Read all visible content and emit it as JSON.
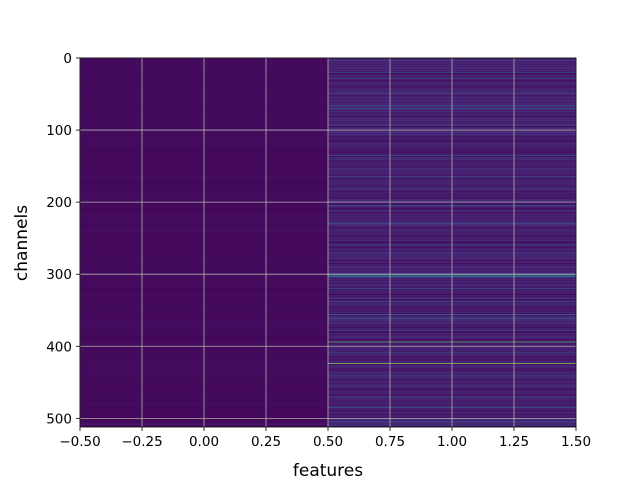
{
  "chart_data": {
    "type": "heatmap",
    "colormap": "viridis",
    "xlabel": "features",
    "ylabel": "channels",
    "xlim": [
      -0.5,
      1.5
    ],
    "ylim": [
      512,
      0
    ],
    "y_inverted": true,
    "grid": true,
    "x_ticks": [
      "−0.50",
      "−0.25",
      "0.00",
      "0.25",
      "0.50",
      "0.75",
      "1.00",
      "1.25",
      "1.50"
    ],
    "x_tick_values": [
      -0.5,
      -0.25,
      0.0,
      0.25,
      0.5,
      0.75,
      1.0,
      1.25,
      1.5
    ],
    "y_ticks": [
      "0",
      "100",
      "200",
      "300",
      "400",
      "500"
    ],
    "y_tick_values": [
      0,
      100,
      200,
      300,
      400,
      500
    ],
    "columns": [
      0,
      1
    ],
    "rows": 512,
    "value_range": [
      0,
      1
    ],
    "column_0": {
      "baseline": 0.02,
      "bright_rows": [
        {
          "row": 508,
          "value": 0.12
        }
      ]
    },
    "column_1": {
      "baseline": 0.12,
      "bright_rows": [
        {
          "row": 3,
          "value": 0.35
        },
        {
          "row": 20,
          "value": 0.3
        },
        {
          "row": 28,
          "value": 0.4
        },
        {
          "row": 50,
          "value": 0.3
        },
        {
          "row": 66,
          "value": 0.35
        },
        {
          "row": 70,
          "value": 0.3
        },
        {
          "row": 93,
          "value": 0.3
        },
        {
          "row": 135,
          "value": 0.38
        },
        {
          "row": 140,
          "value": 0.3
        },
        {
          "row": 165,
          "value": 0.28
        },
        {
          "row": 200,
          "value": 0.35
        },
        {
          "row": 205,
          "value": 0.4
        },
        {
          "row": 230,
          "value": 0.3
        },
        {
          "row": 260,
          "value": 0.28
        },
        {
          "row": 301,
          "value": 0.62
        },
        {
          "row": 303,
          "value": 0.55
        },
        {
          "row": 320,
          "value": 0.3
        },
        {
          "row": 338,
          "value": 0.38
        },
        {
          "row": 356,
          "value": 0.42
        },
        {
          "row": 361,
          "value": 0.45
        },
        {
          "row": 378,
          "value": 0.3
        },
        {
          "row": 394,
          "value": 0.88
        },
        {
          "row": 409,
          "value": 0.3
        },
        {
          "row": 424,
          "value": 0.92
        },
        {
          "row": 440,
          "value": 0.3
        },
        {
          "row": 455,
          "value": 0.28
        },
        {
          "row": 470,
          "value": 0.3
        },
        {
          "row": 485,
          "value": 0.32
        },
        {
          "row": 505,
          "value": 0.4
        }
      ]
    }
  }
}
